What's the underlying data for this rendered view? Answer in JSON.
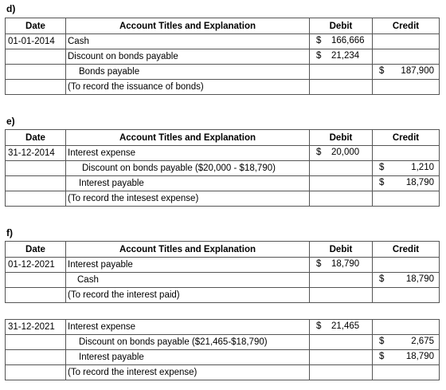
{
  "sections": [
    {
      "label": "d)",
      "header": {
        "date": "Date",
        "account": "Account Titles and Explanation",
        "debit": "Debit",
        "credit": "Credit"
      },
      "entries": [
        {
          "rows": [
            {
              "date": "01-01-2014",
              "account": "Cash",
              "debit": {
                "symbol": "$",
                "amount": "166,666"
              }
            },
            {
              "account": "Discount on bonds payable",
              "debit": {
                "symbol": "$",
                "amount": "21,234"
              }
            },
            {
              "account": "Bonds payable",
              "credit": {
                "symbol": "$",
                "amount": "187,900"
              }
            },
            {
              "account": "(To record the issuance of bonds)"
            }
          ]
        }
      ]
    },
    {
      "label": "e)",
      "header": {
        "date": "Date",
        "account": "Account Titles and Explanation",
        "debit": "Debit",
        "credit": "Credit"
      },
      "entries": [
        {
          "rows": [
            {
              "date": "31-12-2014",
              "account": "Interest expense",
              "debit": {
                "symbol": "$",
                "amount": "20,000"
              }
            },
            {
              "account": "Discount on bonds payable ($20,000 - $18,790)",
              "credit": {
                "symbol": "$",
                "amount": "1,210"
              }
            },
            {
              "account": "Interest payable",
              "credit": {
                "symbol": "$",
                "amount": "18,790"
              }
            },
            {
              "account": "(To record the intesest expense)"
            }
          ]
        }
      ]
    },
    {
      "label": "f)",
      "header": {
        "date": "Date",
        "account": "Account Titles and Explanation",
        "debit": "Debit",
        "credit": "Credit"
      },
      "entries": [
        {
          "rows": [
            {
              "date": "01-12-2021",
              "account": "Interest payable",
              "debit": {
                "symbol": "$",
                "amount": "18,790"
              }
            },
            {
              "account": "Cash",
              "credit": {
                "symbol": "$",
                "amount": "18,790"
              }
            },
            {
              "account": "(To record the interest paid)"
            }
          ]
        },
        {
          "rows": [
            {
              "date": "31-12-2021",
              "account": "Interest expense",
              "debit": {
                "symbol": "$",
                "amount": "21,465"
              }
            },
            {
              "account": "Discount on bonds payable ($21,465-$18,790)",
              "credit": {
                "symbol": "$",
                "amount": "2,675"
              }
            },
            {
              "account": "Interest payable",
              "credit": {
                "symbol": "$",
                "amount": "18,790"
              }
            },
            {
              "account": "(To record the interest expense)"
            }
          ]
        }
      ]
    }
  ]
}
